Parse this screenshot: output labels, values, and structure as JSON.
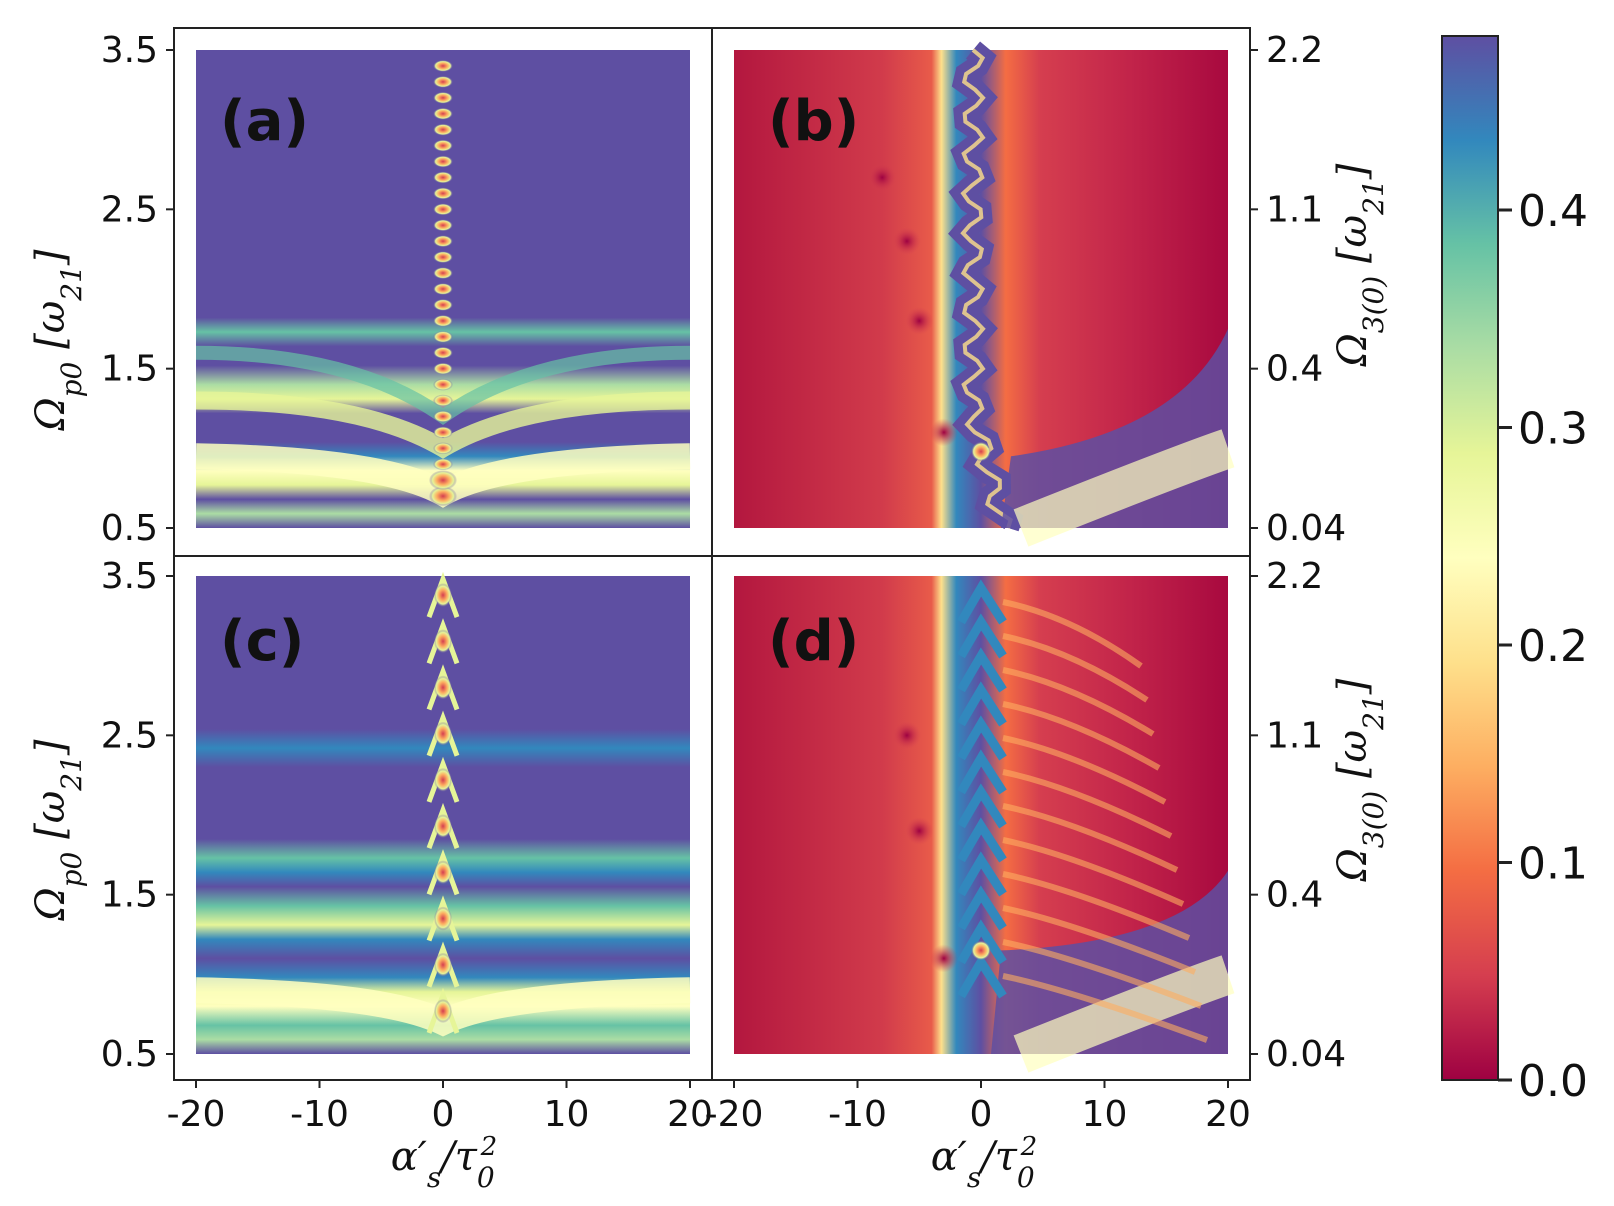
{
  "chart_data": [
    {
      "type": "heatmap",
      "panel_label": "(a)",
      "x_ticks": [
        "-20",
        "-10",
        "0",
        "10",
        "20"
      ],
      "xlim": [
        -20,
        20
      ],
      "y_ticks": [
        "0.5",
        "1.5",
        "2.5",
        "3.5"
      ],
      "ylim": [
        0.5,
        3.5
      ],
      "ylabel": "Ω_{p0} [ω_{21}]",
      "xlabel": "",
      "pattern": "fringe-dots"
    },
    {
      "type": "heatmap",
      "panel_label": "(b)",
      "x_ticks": [],
      "xlim": [
        -20,
        20
      ],
      "y_ticks_right": [
        "0.04",
        "0.4",
        "1.1",
        "2.2"
      ],
      "ylabel_right": "Ω_{3(0)} [ω_{21}]",
      "xlabel": "",
      "pattern": "red-wave"
    },
    {
      "type": "heatmap",
      "panel_label": "(c)",
      "x_ticks": [
        "-20",
        "-10",
        "0",
        "10",
        "20"
      ],
      "xlim": [
        -20,
        20
      ],
      "y_ticks": [
        "0.5",
        "1.5",
        "2.5",
        "3.5"
      ],
      "ylim": [
        0.5,
        3.5
      ],
      "ylabel": "Ω_{p0} [ω_{21}]",
      "xlabel": "α′_s/τ_0^2",
      "pattern": "fringe-chevrons"
    },
    {
      "type": "heatmap",
      "panel_label": "(d)",
      "x_ticks": [
        "-20",
        "-10",
        "0",
        "10",
        "20"
      ],
      "xlim": [
        -20,
        20
      ],
      "y_ticks_right": [
        "0.04",
        "0.4",
        "1.1",
        "2.2"
      ],
      "ylabel_right": "Ω_{3(0)} [ω_{21}]",
      "xlabel": "α′_s/τ_0^2",
      "pattern": "red-chevrons"
    }
  ],
  "colorbar": {
    "ticks": [
      "0.0",
      "0.1",
      "0.2",
      "0.3",
      "0.4"
    ],
    "range": [
      0.0,
      0.48
    ],
    "colormap": [
      "#9e0142",
      "#d53e4f",
      "#f46d43",
      "#fdae61",
      "#fee08b",
      "#ffffbf",
      "#e6f598",
      "#abdda4",
      "#66c2a5",
      "#3288bd",
      "#5e4fa2"
    ]
  }
}
